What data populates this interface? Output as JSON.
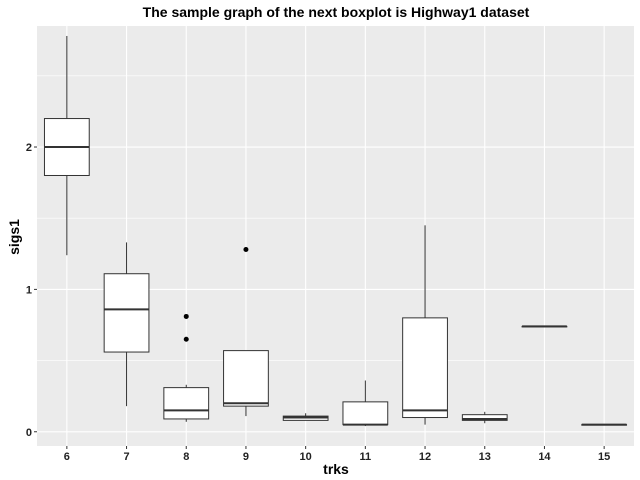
{
  "chart_data": {
    "type": "boxplot",
    "title": "The sample graph of the next boxplot is Highway1 dataset",
    "xlabel": "trks",
    "ylabel": "sigs1",
    "ylim": [
      -0.1,
      2.85
    ],
    "yticks": [
      0,
      1,
      2
    ],
    "grid": true,
    "legend": "none",
    "colors": {
      "panel": "#ebebeb",
      "grid": "#ffffff",
      "box_fill": "#ffffff",
      "box_line": "#333333",
      "outlier": "#000000"
    },
    "categories": [
      "6",
      "7",
      "8",
      "9",
      "10",
      "11",
      "12",
      "13",
      "14",
      "15"
    ],
    "boxes": [
      {
        "category": "6",
        "min": 1.24,
        "q1": 1.8,
        "median": 2.0,
        "q3": 2.2,
        "max": 2.78,
        "outliers": []
      },
      {
        "category": "7",
        "min": 0.18,
        "q1": 0.56,
        "median": 0.86,
        "q3": 1.11,
        "max": 1.33,
        "outliers": []
      },
      {
        "category": "8",
        "min": 0.07,
        "q1": 0.09,
        "median": 0.15,
        "q3": 0.31,
        "max": 0.33,
        "outliers": [
          0.65,
          0.81
        ]
      },
      {
        "category": "9",
        "min": 0.11,
        "q1": 0.18,
        "median": 0.2,
        "q3": 0.57,
        "max": 0.57,
        "outliers": [
          1.28
        ]
      },
      {
        "category": "10",
        "min": 0.08,
        "q1": 0.08,
        "median": 0.1,
        "q3": 0.11,
        "max": 0.13,
        "outliers": []
      },
      {
        "category": "11",
        "min": 0.04,
        "q1": 0.05,
        "median": 0.05,
        "q3": 0.21,
        "max": 0.36,
        "outliers": []
      },
      {
        "category": "12",
        "min": 0.05,
        "q1": 0.1,
        "median": 0.15,
        "q3": 0.8,
        "max": 1.45,
        "outliers": []
      },
      {
        "category": "13",
        "min": 0.06,
        "q1": 0.08,
        "median": 0.09,
        "q3": 0.12,
        "max": 0.14,
        "outliers": []
      },
      {
        "category": "14",
        "min": 0.74,
        "q1": 0.74,
        "median": 0.74,
        "q3": 0.74,
        "max": 0.74,
        "outliers": []
      },
      {
        "category": "15",
        "min": 0.05,
        "q1": 0.05,
        "median": 0.05,
        "q3": 0.05,
        "max": 0.05,
        "outliers": []
      }
    ]
  }
}
